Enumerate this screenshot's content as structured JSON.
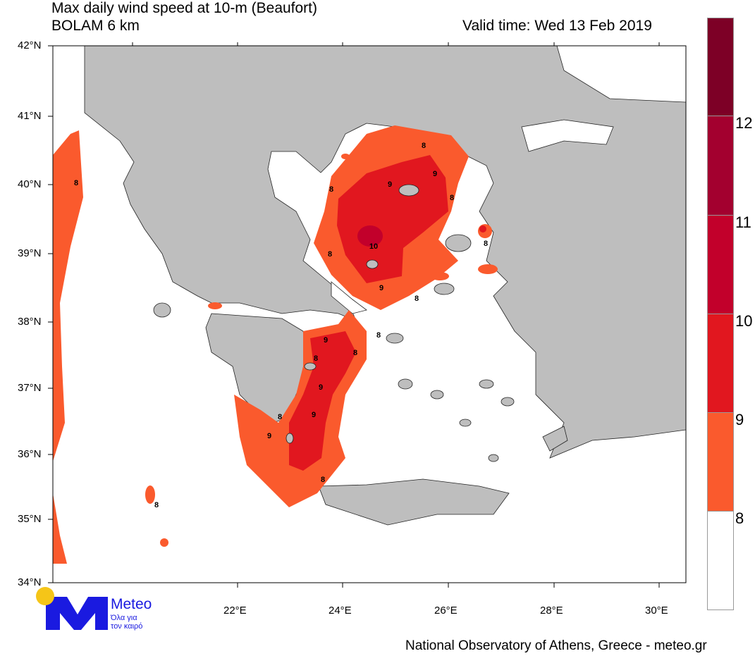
{
  "header": {
    "title": "Max daily wind speed at 10-m (Beaufort)",
    "model": "BOLAM 6 km",
    "valid_time": "Valid time: Wed 13 Feb 2019"
  },
  "axes": {
    "lat_labels": [
      "42°N",
      "41°N",
      "40°N",
      "39°N",
      "38°N",
      "37°N",
      "36°N",
      "35°N",
      "34°N"
    ],
    "lon_labels": [
      "22°E",
      "24°E",
      "26°E",
      "28°E",
      "30°E"
    ]
  },
  "colorbar": {
    "labels": [
      "12",
      "11",
      "10",
      "9",
      "8"
    ],
    "colors": {
      "lt8": "#ffffff",
      "8-9": "#fa5a2d",
      "9-10": "#e1171f",
      "10-11": "#c2002b",
      "11-12": "#a3002f",
      "gt12": "#7d0026"
    }
  },
  "map": {
    "land_color": "#bebebe",
    "sea_color": "#ffffff",
    "contour_labels": [
      "8",
      "8",
      "9",
      "9",
      "8",
      "8",
      "10",
      "9",
      "8",
      "8",
      "8",
      "9",
      "8",
      "8",
      "9",
      "9",
      "8",
      "9",
      "8",
      "8",
      "8"
    ]
  },
  "logo": {
    "name": "Meteo",
    "tagline_1": "Όλα για",
    "tagline_2": "τον καιρό"
  },
  "footer": {
    "credit": "National Observatory of Athens, Greece - meteo.gr"
  }
}
